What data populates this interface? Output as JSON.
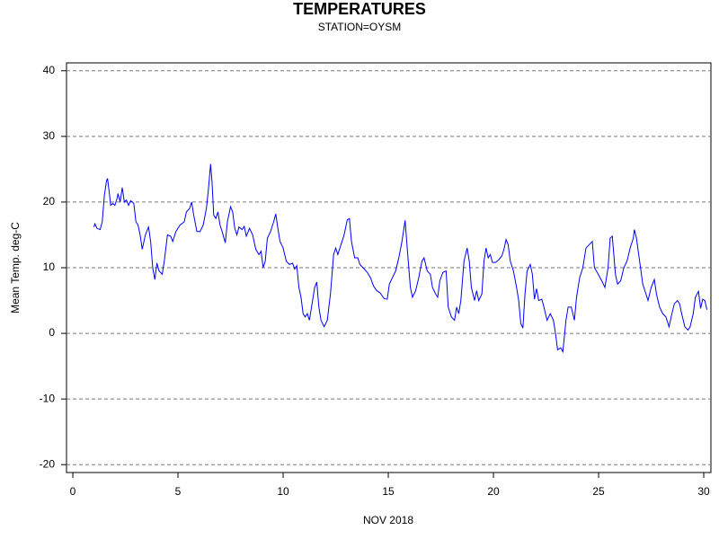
{
  "chart_data": {
    "type": "line",
    "title": "TEMPERATURES",
    "subtitle": "STATION=OYSM",
    "y_label": "Mean Temp. deg-C",
    "x_label": "NOV 2018",
    "color": "#0000ff",
    "grid": true,
    "xlim": [
      -0.3,
      30.34
    ],
    "ylim": [
      -21.2,
      41.2
    ],
    "xticks": [
      0,
      5,
      10,
      15,
      20,
      25,
      30
    ],
    "yticks": [
      -20,
      -10,
      0,
      10,
      20,
      30,
      40
    ],
    "x": [
      1.0,
      1.05,
      1.15,
      1.3,
      1.4,
      1.5,
      1.6,
      1.65,
      1.75,
      1.8,
      1.9,
      2.0,
      2.1,
      2.15,
      2.25,
      2.35,
      2.45,
      2.55,
      2.65,
      2.75,
      2.9,
      3.0,
      3.1,
      3.2,
      3.3,
      3.45,
      3.6,
      3.7,
      3.8,
      3.9,
      4.0,
      4.1,
      4.25,
      4.35,
      4.5,
      4.65,
      4.75,
      4.9,
      5.1,
      5.3,
      5.4,
      5.55,
      5.65,
      5.75,
      5.9,
      6.05,
      6.2,
      6.35,
      6.45,
      6.55,
      6.62,
      6.7,
      6.8,
      6.9,
      7.0,
      7.1,
      7.25,
      7.35,
      7.5,
      7.6,
      7.7,
      7.8,
      7.9,
      8.05,
      8.15,
      8.25,
      8.4,
      8.55,
      8.7,
      8.85,
      8.95,
      9.05,
      9.15,
      9.25,
      9.4,
      9.55,
      9.65,
      9.75,
      9.85,
      10.0,
      10.15,
      10.3,
      10.45,
      10.55,
      10.65,
      10.75,
      10.85,
      10.95,
      11.05,
      11.15,
      11.25,
      11.35,
      11.5,
      11.6,
      11.7,
      11.8,
      11.95,
      12.1,
      12.25,
      12.4,
      12.5,
      12.6,
      12.75,
      12.9,
      13.05,
      13.15,
      13.25,
      13.4,
      13.55,
      13.65,
      13.8,
      14.0,
      14.15,
      14.3,
      14.45,
      14.6,
      14.8,
      14.95,
      15.05,
      15.2,
      15.35,
      15.5,
      15.65,
      15.8,
      15.9,
      16.05,
      16.15,
      16.3,
      16.45,
      16.6,
      16.7,
      16.85,
      17.0,
      17.1,
      17.25,
      17.35,
      17.45,
      17.6,
      17.75,
      17.85,
      18.0,
      18.15,
      18.25,
      18.35,
      18.45,
      18.6,
      18.75,
      18.85,
      18.95,
      19.1,
      19.2,
      19.3,
      19.45,
      19.55,
      19.65,
      19.75,
      19.85,
      19.95,
      20.1,
      20.25,
      20.4,
      20.5,
      20.6,
      20.7,
      20.8,
      20.95,
      21.1,
      21.2,
      21.3,
      21.4,
      21.5,
      21.6,
      21.75,
      21.85,
      21.95,
      22.05,
      22.15,
      22.3,
      22.4,
      22.55,
      22.7,
      22.85,
      22.95,
      23.05,
      23.2,
      23.3,
      23.45,
      23.55,
      23.7,
      23.85,
      23.95,
      24.1,
      24.25,
      24.4,
      24.55,
      24.7,
      24.8,
      24.95,
      25.15,
      25.3,
      25.45,
      25.55,
      25.65,
      25.8,
      25.9,
      26.05,
      26.2,
      26.35,
      26.5,
      26.65,
      26.7,
      26.8,
      26.95,
      27.1,
      27.25,
      27.35,
      27.5,
      27.65,
      27.75,
      27.9,
      28.05,
      28.2,
      28.35,
      28.45,
      28.6,
      28.75,
      28.85,
      28.95,
      29.1,
      29.25,
      29.35,
      29.5,
      29.6,
      29.75,
      29.85,
      29.95,
      30.05,
      30.15
    ],
    "values": [
      16.2,
      16.7,
      16.0,
      15.8,
      17,
      21,
      23.2,
      23.6,
      21,
      19.5,
      19.8,
      19.5,
      20.5,
      21.3,
      20,
      22.2,
      20,
      20.3,
      19.5,
      20.2,
      19.8,
      17,
      16.5,
      15,
      12.8,
      15,
      16.2,
      14,
      10,
      8.2,
      10.7,
      9.5,
      9.0,
      11,
      15,
      14.8,
      14,
      15.5,
      16.5,
      17,
      18.5,
      19,
      20,
      18,
      15.5,
      15.5,
      16.5,
      19,
      22,
      25.8,
      23,
      18,
      17.5,
      18.5,
      16.5,
      15.5,
      13.8,
      17,
      19.3,
      18.5,
      16,
      15,
      16.2,
      15.8,
      16.3,
      14.8,
      16,
      15,
      12.8,
      12,
      12.5,
      10,
      11,
      14.5,
      15.5,
      17,
      18.2,
      16,
      14,
      13,
      11,
      10.5,
      10.7,
      9.8,
      10.3,
      7,
      5.5,
      3,
      2.5,
      3,
      2,
      4,
      7,
      7.8,
      4,
      2,
      1,
      2,
      6,
      12,
      13,
      12,
      13.5,
      15,
      17.3,
      17.5,
      14,
      11.5,
      11.5,
      10.5,
      10,
      9.3,
      8.5,
      7.2,
      6.5,
      6.2,
      5.3,
      5.2,
      7.5,
      8.5,
      9.5,
      11.5,
      14,
      17.2,
      13,
      7,
      5.5,
      6.5,
      8.5,
      11,
      11.5,
      9.5,
      9.0,
      7,
      6,
      5.5,
      8,
      9.3,
      9.5,
      4,
      2.5,
      2,
      4,
      3,
      5,
      11,
      13,
      11,
      7,
      5,
      6.5,
      5,
      6,
      11,
      13,
      11.5,
      12,
      10.8,
      10.8,
      11.2,
      11.8,
      12.8,
      14.3,
      13.5,
      11,
      9.5,
      7,
      5,
      1.5,
      0.8,
      6,
      9.5,
      10.5,
      9,
      5.2,
      6.8,
      5,
      5.2,
      4,
      2,
      3,
      2,
      0,
      -2.5,
      -2.2,
      -2.8,
      2,
      4,
      4,
      2,
      5.5,
      8.5,
      10,
      13,
      13.5,
      14,
      10,
      9.2,
      8,
      7,
      10,
      14.5,
      14.8,
      9,
      7.5,
      8,
      10,
      11,
      13,
      14.5,
      15.8,
      14.5,
      11,
      7.5,
      6,
      5,
      7,
      8.2,
      6,
      4,
      3,
      2.5,
      1,
      2.5,
      4.5,
      5,
      4.5,
      3,
      1,
      0.5,
      1,
      3,
      5.5,
      6.4,
      3.8,
      5.2,
      5,
      3.6
    ]
  }
}
